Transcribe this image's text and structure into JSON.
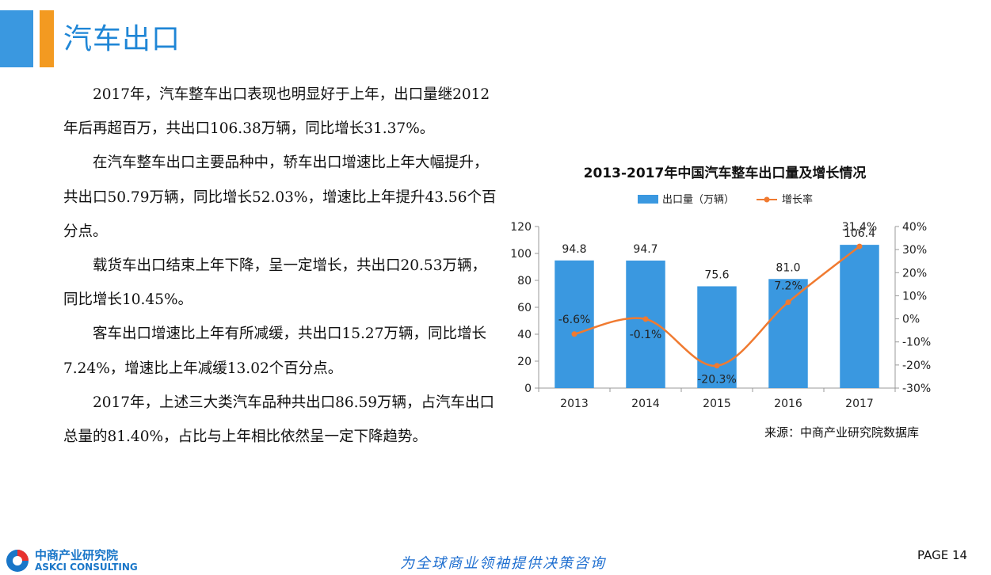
{
  "header": {
    "title": "汽车出口"
  },
  "paragraphs": [
    "2017年，汽车整车出口表现也明显好于上年，出口量继2012年后再超百万，共出口106.38万辆，同比增长31.37%。",
    "在汽车整车出口主要品种中，轿车出口增速比上年大幅提升，共出口50.79万辆，同比增长52.03%，增速比上年提升43.56个百分点。",
    "载货车出口结束上年下降，呈一定增长，共出口20.53万辆，同比增长10.45%。",
    "客车出口增速比上年有所减缓，共出口15.27万辆，同比增长7.24%，增速比上年减缓13.02个百分点。",
    "2017年，上述三大类汽车品种共出口86.59万辆，占汽车出口总量的81.40%，占比与上年相比依然呈一定下降趋势。"
  ],
  "chart_data": {
    "type": "bar",
    "title": "2013-2017年中国汽车整车出口量及增长情况",
    "categories": [
      "2013",
      "2014",
      "2015",
      "2016",
      "2017"
    ],
    "series": [
      {
        "name": "出口量（万辆）",
        "type": "bar",
        "axis": "left",
        "values": [
          94.8,
          94.7,
          75.6,
          81.0,
          106.4
        ],
        "labels": [
          "94.8",
          "94.7",
          "75.6",
          "81.0",
          "106.4"
        ],
        "color": "#3a98e0"
      },
      {
        "name": "增长率",
        "type": "line",
        "axis": "right",
        "values": [
          -6.6,
          -0.1,
          -20.3,
          7.2,
          31.4
        ],
        "labels": [
          "-6.6%",
          "-0.1%",
          "-20.3%",
          "7.2%",
          "31.4%"
        ],
        "color": "#f07a30"
      }
    ],
    "y_left": {
      "min": 0,
      "max": 120,
      "ticks": [
        "0",
        "20",
        "40",
        "60",
        "80",
        "100",
        "120"
      ]
    },
    "y_right": {
      "min": -30,
      "max": 40,
      "ticks": [
        "-30%",
        "-20%",
        "-10%",
        "0%",
        "10%",
        "20%",
        "30%",
        "40%"
      ]
    },
    "legend_position": "top",
    "grid": false
  },
  "source": "来源：中商产业研究院数据库",
  "footer": {
    "logo_cn": "中商产业研究院",
    "logo_en": "ASKCI CONSULTING",
    "slogan": "为全球商业领袖提供决策咨询",
    "page": "PAGE 14"
  },
  "colors": {
    "accent_blue": "#3a98e0",
    "accent_orange": "#f39a21",
    "title_blue": "#1f86d6"
  }
}
